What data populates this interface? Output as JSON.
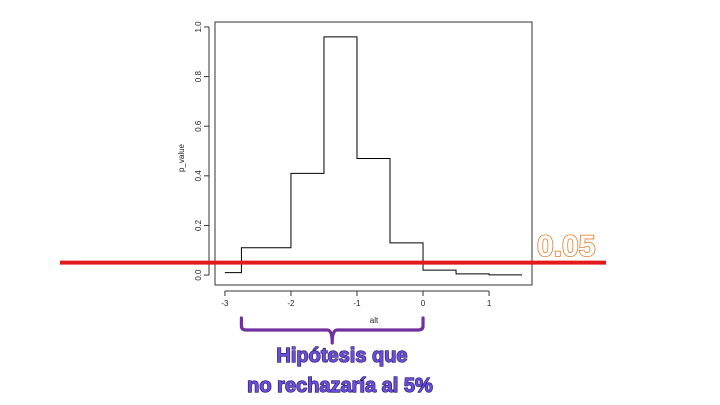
{
  "chart_data": {
    "type": "line",
    "step": true,
    "xlabel": "alt",
    "ylabel": "p_value",
    "xlim": [
      -3.15,
      1.65
    ],
    "ylim": [
      -0.04,
      1.02
    ],
    "x_ticks": [
      -3,
      -2,
      -1,
      0,
      1
    ],
    "y_ticks": [
      0.0,
      0.2,
      0.4,
      0.6,
      0.8,
      1.0
    ],
    "x_tick_labels": [
      "-3",
      "-2",
      "-1",
      "0",
      "1"
    ],
    "y_tick_labels": [
      "0.0",
      "0.2",
      "0.4",
      "0.6",
      "0.8",
      "1.0"
    ],
    "series": [
      {
        "x": [
          -3.0,
          -2.75,
          -2.0,
          -1.5,
          -1.0,
          -0.5,
          0.0,
          0.5,
          1.0,
          1.5
        ],
        "y": [
          0.01,
          0.11,
          0.41,
          0.96,
          0.47,
          0.13,
          0.02,
          0.005,
          0.001,
          0.001
        ]
      }
    ],
    "threshold": {
      "value": 0.05,
      "label": "0.05",
      "color": "#e31a1c"
    },
    "bracket": {
      "from": -2.75,
      "to": 0.0,
      "color": "#7030a0"
    }
  },
  "annotation": {
    "line1": "Hipótesis que",
    "line2": "no rechazaría al 5%",
    "color": "#6b4ed8"
  },
  "colors": {
    "line": "#000000",
    "frame": "#333333",
    "threshold_label": "#e87722"
  }
}
